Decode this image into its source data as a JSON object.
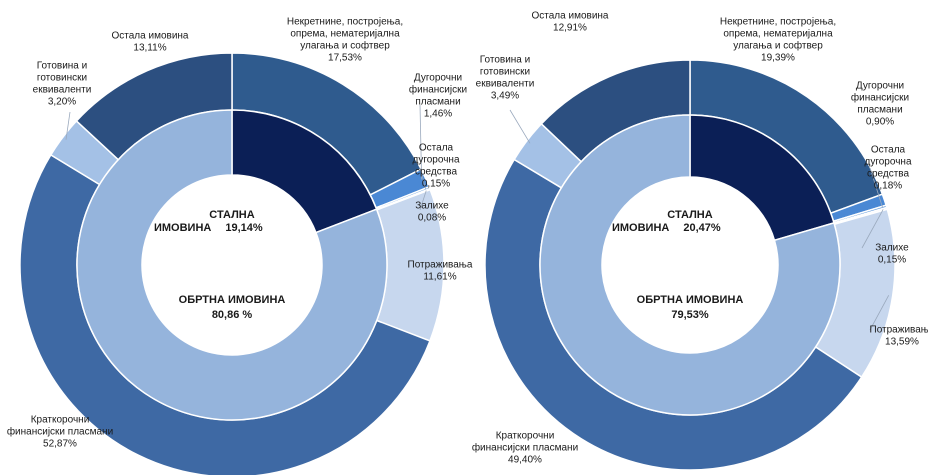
{
  "chart_data": [
    {
      "type": "donut",
      "inner": {
        "categories": [
          [
            "СТАЛНА",
            "ИМОВИНА"
          ],
          [
            "ОБРТНА ИМОВИНА"
          ]
        ],
        "values": [
          19.14,
          80.86
        ],
        "value_labels": [
          "19,14%",
          "80,86 %"
        ],
        "colors": [
          "#0b1f56",
          "#95b4dc"
        ],
        "label_colors": [
          "#1d3a7a",
          "#4a86d0"
        ]
      },
      "outer": {
        "categories": [
          [
            "Некретнине, постројења,",
            "опрема, нематеријална",
            "улагања и софтвер"
          ],
          [
            "Дугорочни",
            "финансијски",
            "пласмани"
          ],
          [
            "Остала",
            "дугорочна",
            "средства"
          ],
          [
            "Залихе"
          ],
          [
            "Потраживања"
          ],
          [
            "Краткорочни",
            "финансијски пласмани"
          ],
          [
            "Готовина и",
            "готовински",
            "еквиваленти"
          ],
          [
            "Остала имовина"
          ]
        ],
        "values": [
          17.53,
          1.46,
          0.15,
          0.08,
          11.61,
          52.87,
          3.2,
          13.11
        ],
        "value_labels": [
          "17,53%",
          "1,46%",
          "0,15%",
          "0,08%",
          "11,61%",
          "52,87%",
          "3,20%",
          "13,11%"
        ],
        "colors": [
          "#2f5b8e",
          "#4a88d4",
          "#6b9fdc",
          "#f2f5fb",
          "#c7d7ee",
          "#3e69a4",
          "#a4c1e6",
          "#2c4f80"
        ]
      }
    },
    {
      "type": "donut",
      "inner": {
        "categories": [
          [
            "СТАЛНА",
            "ИМОВИНА"
          ],
          [
            "ОБРТНА ИМОВИНА"
          ]
        ],
        "values": [
          20.47,
          79.53
        ],
        "value_labels": [
          "20,47%",
          "79,53%"
        ],
        "colors": [
          "#0b1f56",
          "#95b4dc"
        ],
        "label_colors": [
          "#1d3a7a",
          "#4a86d0"
        ]
      },
      "outer": {
        "categories": [
          [
            "Некретнине, постројења,",
            "опрема, нематеријална",
            "улагања и софтвер"
          ],
          [
            "Дугорочни",
            "финансијски",
            "пласмани"
          ],
          [
            "Остала",
            "дугорочна",
            "средства"
          ],
          [
            "Залихе"
          ],
          [
            "Потраживања"
          ],
          [
            "Краткорочни",
            "финансијски пласмани"
          ],
          [
            "Готовина и",
            "готовински",
            "еквиваленти"
          ],
          [
            "Остала имовина"
          ]
        ],
        "values": [
          19.39,
          0.9,
          0.18,
          0.15,
          13.59,
          49.4,
          3.49,
          12.91
        ],
        "value_labels": [
          "19,39%",
          "0,90%",
          "0,18%",
          "0,15%",
          "13,59%",
          "49,40%",
          "3,49%",
          "12,91%"
        ],
        "colors": [
          "#2f5b8e",
          "#4a88d4",
          "#6b9fdc",
          "#f2f5fb",
          "#c7d7ee",
          "#3e69a4",
          "#a4c1e6",
          "#2c4f80"
        ]
      }
    }
  ]
}
